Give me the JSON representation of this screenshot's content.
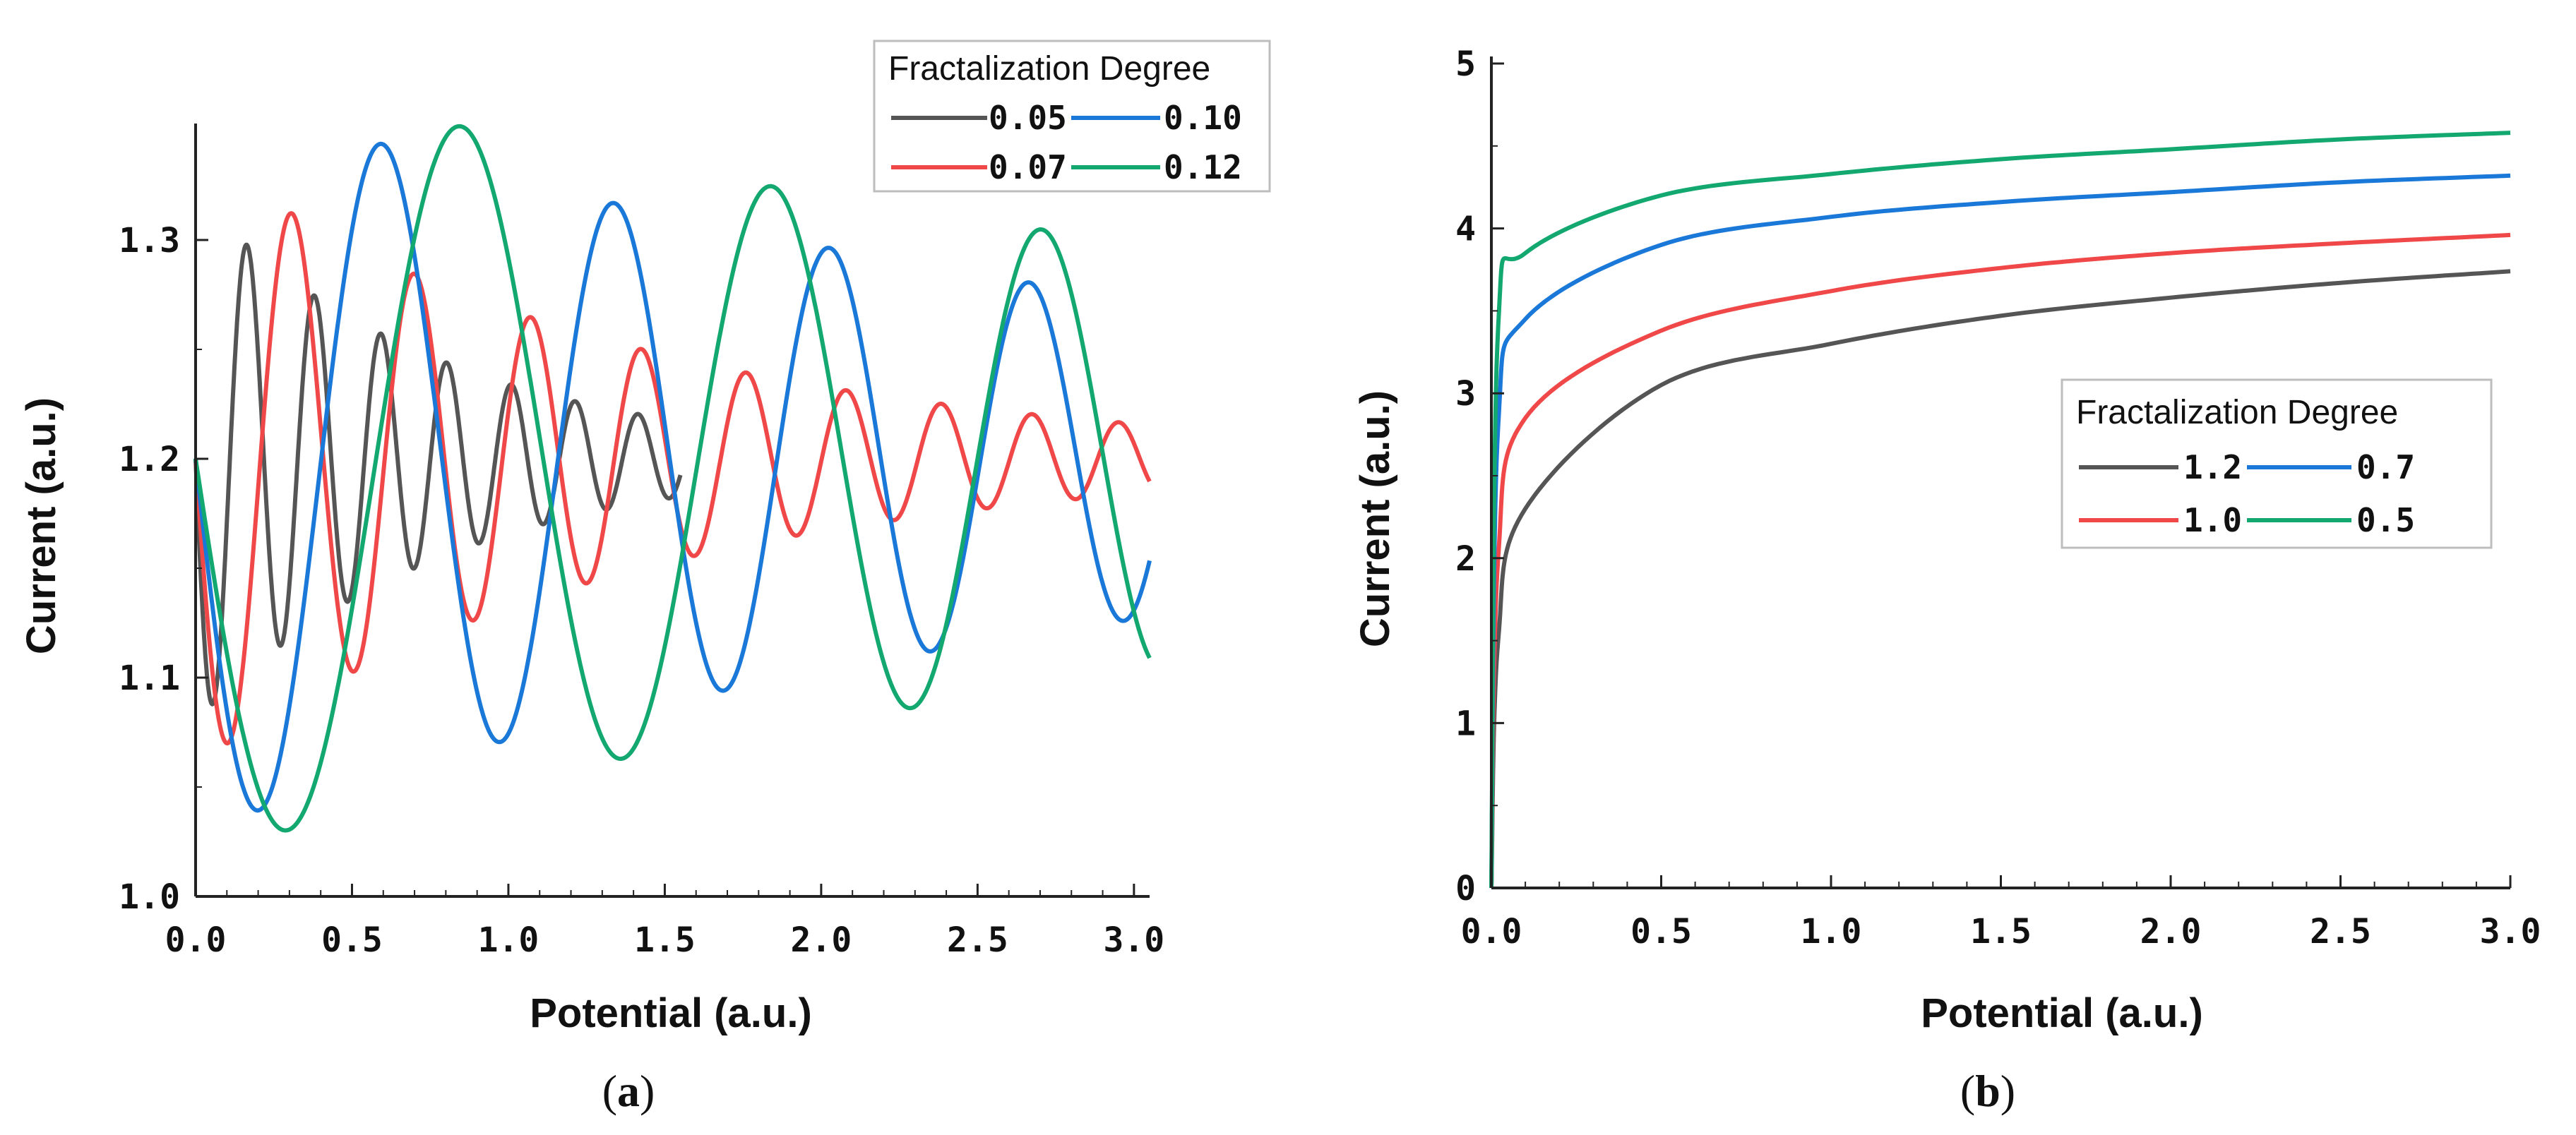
{
  "chart_data": [
    {
      "type": "line",
      "caption_letter": "a",
      "xlabel": "Potential (a.u.)",
      "ylabel": "Current (a.u.)",
      "xlim": [
        0,
        3.05
      ],
      "ylim": [
        1.0,
        1.35
      ],
      "xticks": [
        0.0,
        0.5,
        1.0,
        1.5,
        2.0,
        2.5,
        3.0
      ],
      "xtick_labels": [
        "0.0",
        "0.5",
        "1.0",
        "1.5",
        "2.0",
        "2.5",
        "3.0"
      ],
      "yticks": [
        1.0,
        1.1,
        1.2,
        1.3
      ],
      "ytick_labels": [
        "1.0",
        "1.1",
        "1.2",
        "1.3"
      ],
      "legend": {
        "title": "Fractalization Degree",
        "position": "top-right",
        "entries": [
          "0.05",
          "0.10",
          "0.07",
          "0.12"
        ]
      },
      "series": [
        {
          "name": "0.05",
          "color": "#555555",
          "x_end": 1.55,
          "center": 1.2,
          "amp0": 0.12,
          "amp_decay": 1.25,
          "period": 0.22,
          "period_growth": -0.1
        },
        {
          "name": "0.07",
          "color": "#f04848",
          "x_end": 3.05,
          "center": 1.2,
          "amp0": 0.14,
          "amp_decay": 0.72,
          "period": 0.42,
          "period_growth": -0.2
        },
        {
          "name": "0.10",
          "color": "#1a78d8",
          "x_end": 3.05,
          "center": 1.2,
          "amp0": 0.17,
          "amp_decay": 0.28,
          "period": 0.82,
          "period_growth": -0.15
        },
        {
          "name": "0.12",
          "color": "#12a870",
          "x_end": 3.05,
          "center": 1.2,
          "amp0": 0.18,
          "amp_decay": 0.2,
          "period": 1.2,
          "period_growth": -0.2
        }
      ]
    },
    {
      "type": "line",
      "caption_letter": "b",
      "xlabel": "Potential (a.u.)",
      "ylabel": "Current (a.u.)",
      "xlim": [
        0,
        3.0
      ],
      "ylim": [
        0,
        5
      ],
      "xticks": [
        0.0,
        0.5,
        1.0,
        1.5,
        2.0,
        2.5,
        3.0
      ],
      "xtick_labels": [
        "0.0",
        "0.5",
        "1.0",
        "1.5",
        "2.0",
        "2.5",
        "3.0"
      ],
      "yticks": [
        0,
        1,
        2,
        3,
        4,
        5
      ],
      "ytick_labels": [
        "0",
        "1",
        "2",
        "3",
        "4",
        "5"
      ],
      "legend": {
        "title": "Fractalization Degree",
        "position": "center-right",
        "entries": [
          "1.2",
          "0.7",
          "1.0",
          "0.5"
        ]
      },
      "series": [
        {
          "name": "1.2",
          "color": "#555555",
          "x": [
            0.0,
            0.02,
            0.1,
            0.5,
            1.0,
            1.5,
            2.0,
            2.5,
            3.0
          ],
          "y": [
            0.0,
            1.5,
            2.3,
            3.05,
            3.3,
            3.47,
            3.58,
            3.67,
            3.74
          ]
        },
        {
          "name": "1.0",
          "color": "#f04848",
          "x": [
            0.0,
            0.02,
            0.1,
            0.5,
            1.0,
            1.5,
            2.0,
            2.5,
            3.0
          ],
          "y": [
            0.0,
            2.0,
            2.85,
            3.38,
            3.62,
            3.76,
            3.85,
            3.91,
            3.96
          ]
        },
        {
          "name": "0.7",
          "color": "#1a78d8",
          "x": [
            0.0,
            0.02,
            0.1,
            0.5,
            1.0,
            1.5,
            2.0,
            2.5,
            3.0
          ],
          "y": [
            0.0,
            2.8,
            3.45,
            3.9,
            4.07,
            4.16,
            4.22,
            4.28,
            4.32
          ]
        },
        {
          "name": "0.5",
          "color": "#12a870",
          "x": [
            0.0,
            0.02,
            0.1,
            0.5,
            1.0,
            1.5,
            2.0,
            2.5,
            3.0
          ],
          "y": [
            0.0,
            3.4,
            3.85,
            4.2,
            4.33,
            4.42,
            4.48,
            4.54,
            4.58
          ]
        }
      ]
    }
  ]
}
